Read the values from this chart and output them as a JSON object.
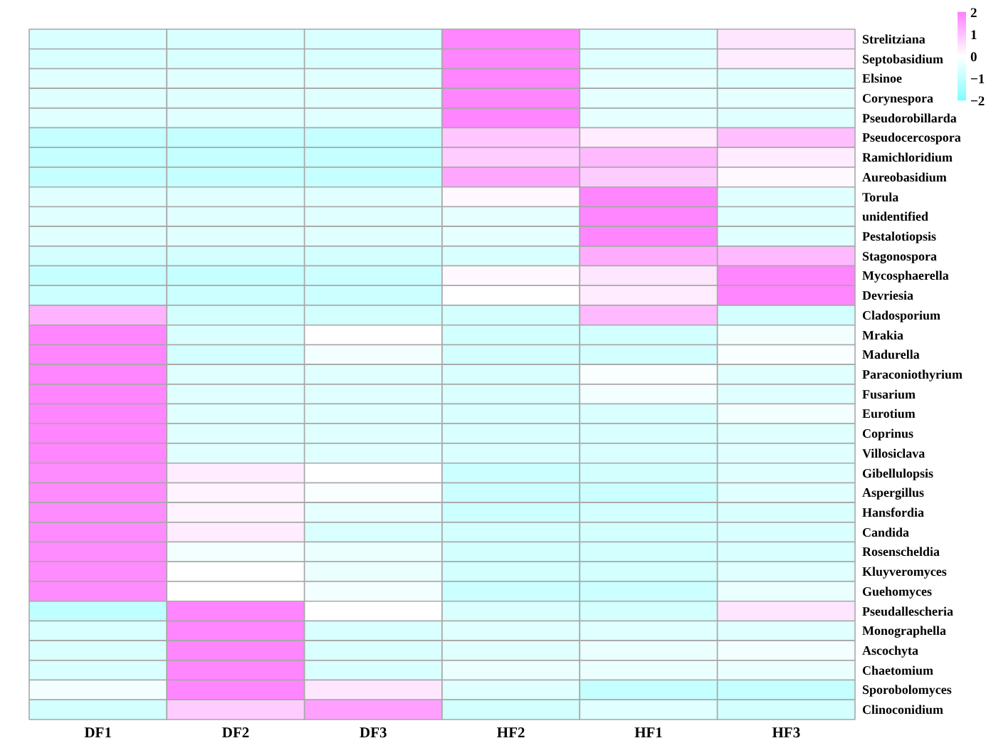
{
  "chart_data": {
    "type": "heatmap",
    "categories": [
      "DF1",
      "DF2",
      "DF3",
      "HF2",
      "HF1",
      "HF3"
    ],
    "y_categories": [
      "Strelitziana",
      "Septobasidium",
      "Elsinoe",
      "Corynespora",
      "Pseudorobillarda",
      "Pseudocercospora",
      "Ramichloridium",
      "Aureobasidium",
      "Torula",
      "unidentified",
      "Pestalotiopsis",
      "Stagonospora",
      "Mycosphaerella",
      "Devriesia",
      "Cladosporium",
      "Mrakia",
      "Madurella",
      "Paraconiothyrium",
      "Fusarium",
      "Eurotium",
      "Coprinus",
      "Villosiclava",
      "Gibellulopsis",
      "Aspergillus",
      "Hansfordia",
      "Candida",
      "Rosenscheldia",
      "Kluyveromyces",
      "Guehomyces",
      "Pseudallescheria",
      "Monographella",
      "Ascochyta",
      "Chaetomium",
      "Sporobolomyces",
      "Clinoconidium"
    ],
    "cells": [
      [
        -0.6,
        -0.6,
        -0.6,
        1.9,
        -0.5,
        0.4
      ],
      [
        -0.6,
        -0.6,
        -0.6,
        1.9,
        -0.5,
        0.3
      ],
      [
        -0.5,
        -0.5,
        -0.5,
        1.9,
        -0.4,
        -0.5
      ],
      [
        -0.5,
        -0.5,
        -0.5,
        1.9,
        -0.4,
        -0.4
      ],
      [
        -0.5,
        -0.5,
        -0.5,
        1.9,
        -0.4,
        -0.5
      ],
      [
        -0.9,
        -0.9,
        -0.9,
        0.9,
        0.3,
        1.0
      ],
      [
        -0.9,
        -0.9,
        -0.9,
        0.8,
        1.1,
        0.3
      ],
      [
        -0.9,
        -0.9,
        -0.9,
        1.4,
        0.8,
        0.1
      ],
      [
        -0.5,
        -0.5,
        -0.5,
        0.1,
        1.9,
        -0.5
      ],
      [
        -0.5,
        -0.5,
        -0.5,
        -0.4,
        1.9,
        -0.5
      ],
      [
        -0.5,
        -0.5,
        -0.5,
        -0.4,
        1.9,
        -0.5
      ],
      [
        -0.7,
        -0.7,
        -0.7,
        -0.6,
        1.3,
        1.1
      ],
      [
        -0.9,
        -0.9,
        -0.8,
        0.1,
        0.4,
        1.9
      ],
      [
        -0.8,
        -0.8,
        -0.8,
        0.0,
        0.3,
        1.9
      ],
      [
        1.2,
        -0.7,
        -0.7,
        -0.7,
        1.1,
        -0.7
      ],
      [
        1.9,
        -0.6,
        0.0,
        -0.7,
        -0.7,
        -0.2
      ],
      [
        1.9,
        -0.7,
        -0.2,
        -0.7,
        -0.7,
        -0.1
      ],
      [
        1.9,
        -0.5,
        -0.5,
        -0.6,
        -0.1,
        -0.5
      ],
      [
        1.9,
        -0.5,
        -0.5,
        -0.6,
        -0.2,
        -0.5
      ],
      [
        1.9,
        -0.5,
        -0.5,
        -0.6,
        -0.6,
        -0.2
      ],
      [
        1.9,
        -0.5,
        -0.5,
        -0.6,
        -0.6,
        -0.5
      ],
      [
        1.9,
        -0.5,
        -0.5,
        -0.6,
        -0.6,
        -0.5
      ],
      [
        1.8,
        0.3,
        0.0,
        -0.8,
        -0.7,
        -0.5
      ],
      [
        1.8,
        0.2,
        -0.1,
        -0.8,
        -0.8,
        -0.5
      ],
      [
        1.8,
        0.2,
        -0.4,
        -0.8,
        -0.7,
        -0.6
      ],
      [
        1.8,
        0.3,
        -0.6,
        -0.7,
        -0.7,
        -0.6
      ],
      [
        1.8,
        -0.2,
        -0.3,
        -0.7,
        -0.7,
        -0.6
      ],
      [
        1.8,
        0.0,
        -0.3,
        -0.7,
        -0.7,
        -0.5
      ],
      [
        1.8,
        0.0,
        -0.2,
        -0.8,
        -0.8,
        -0.3
      ],
      [
        -1.0,
        1.9,
        0.0,
        -0.6,
        -0.7,
        0.4
      ],
      [
        -0.6,
        1.9,
        -0.6,
        -0.5,
        -0.5,
        -0.5
      ],
      [
        -0.6,
        1.9,
        -0.6,
        -0.5,
        -0.3,
        -0.2
      ],
      [
        -0.6,
        1.9,
        -0.6,
        -0.3,
        -0.3,
        -0.3
      ],
      [
        -0.2,
        1.9,
        0.4,
        -0.5,
        -0.9,
        -0.9
      ],
      [
        -0.7,
        0.8,
        1.5,
        -0.7,
        -0.5,
        -0.7
      ]
    ],
    "clim": [
      -2,
      2
    ],
    "cticks": [
      2,
      1,
      0,
      {
        "value": -1,
        "label": "−1"
      },
      {
        "value": -2,
        "label": "−2"
      }
    ]
  }
}
